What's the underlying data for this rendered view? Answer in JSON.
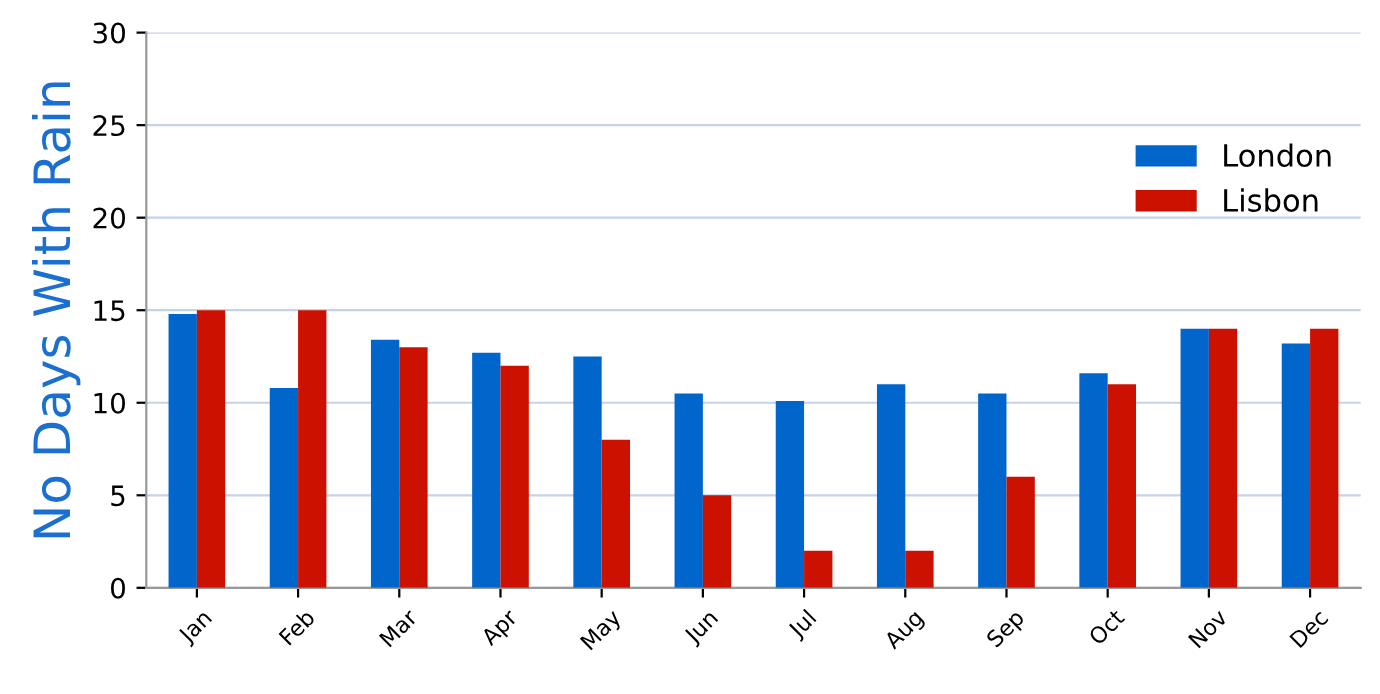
{
  "chart_data": {
    "type": "bar",
    "ylabel": "No Days With Rain",
    "categories": [
      "Jan",
      "Feb",
      "Mar",
      "Apr",
      "May",
      "Jun",
      "Jul",
      "Aug",
      "Sep",
      "Oct",
      "Nov",
      "Dec"
    ],
    "series": [
      {
        "name": "London",
        "color": "#0066cc",
        "values": [
          14.8,
          10.8,
          13.4,
          12.7,
          12.5,
          10.5,
          10.1,
          11.0,
          10.5,
          11.6,
          14,
          13.2
        ]
      },
      {
        "name": "Lisbon",
        "color": "#cc1100",
        "values": [
          15,
          15,
          13,
          12,
          8,
          5,
          2,
          2,
          6,
          11,
          14,
          14
        ]
      }
    ],
    "ylim": [
      0,
      30
    ],
    "yticks": [
      0,
      5,
      10,
      15,
      20,
      25,
      30
    ],
    "grid": "y",
    "legend": "top right"
  }
}
